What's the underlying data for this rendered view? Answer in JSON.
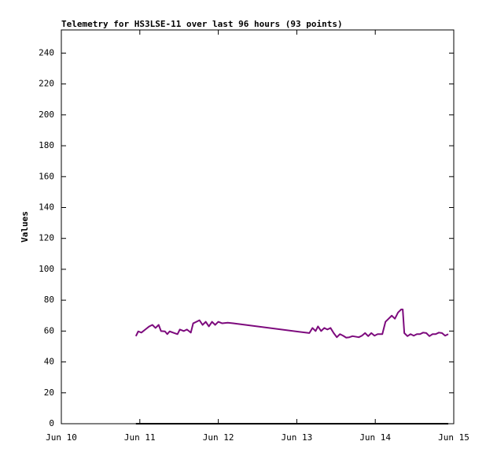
{
  "chart_data": {
    "type": "line",
    "title": "Telemetry for HS3LSE-11 over last 96 hours (93 points)",
    "y_label": "Values",
    "xlim": [
      10,
      15
    ],
    "xticks": [
      {
        "value": 10,
        "label": "Jun 10"
      },
      {
        "value": 11,
        "label": "Jun 11"
      },
      {
        "value": 12,
        "label": "Jun 12"
      },
      {
        "value": 13,
        "label": "Jun 13"
      },
      {
        "value": 14,
        "label": "Jun 14"
      },
      {
        "value": 15,
        "label": "Jun 15"
      }
    ],
    "ylim": [
      0,
      255
    ],
    "yticks": [
      0,
      20,
      40,
      60,
      80,
      100,
      120,
      140,
      160,
      180,
      200,
      220,
      240
    ],
    "grid": false,
    "series": [
      {
        "color": "#7d0a7d",
        "x": [
          10.95,
          10.98,
          11.02,
          11.07,
          11.12,
          11.16,
          11.2,
          11.24,
          11.27,
          11.32,
          11.35,
          11.38,
          11.44,
          11.48,
          11.51,
          11.56,
          11.6,
          11.65,
          11.68,
          11.72,
          11.76,
          11.8,
          11.84,
          11.88,
          11.92,
          11.96,
          12.0,
          12.05,
          12.12,
          12.19,
          13.16,
          13.2,
          13.24,
          13.27,
          13.31,
          13.35,
          13.39,
          13.43,
          13.47,
          13.51,
          13.55,
          13.59,
          13.63,
          13.67,
          13.71,
          13.79,
          13.83,
          13.87,
          13.91,
          13.95,
          13.99,
          14.03,
          14.09,
          14.13,
          14.17,
          14.21,
          14.25,
          14.29,
          14.33,
          14.35,
          14.37,
          14.41,
          14.45,
          14.49,
          14.53,
          14.57,
          14.61,
          14.65,
          14.69,
          14.73,
          14.77,
          14.81,
          14.85,
          14.89,
          14.93
        ],
        "values": [
          56.7,
          59.8,
          59,
          61,
          63,
          64,
          62,
          64,
          60,
          59.8,
          58,
          59.8,
          58.7,
          58,
          61,
          60,
          61,
          59,
          65,
          66,
          67,
          64,
          66,
          63,
          66,
          64,
          66,
          65,
          65.4,
          65,
          58.7,
          62,
          60,
          63,
          60,
          62,
          61,
          62,
          58.7,
          56,
          58,
          57,
          55.7,
          56,
          56.7,
          56,
          57,
          58.7,
          56.7,
          58.7,
          57,
          58,
          58,
          66,
          68,
          70,
          68,
          72,
          74,
          74,
          58.7,
          56.7,
          58,
          57,
          58,
          58,
          59,
          58.7,
          56.7,
          58,
          58,
          59,
          58.7,
          57,
          58
        ]
      },
      {
        "color": "#000000",
        "x": [
          10.95,
          14.93
        ],
        "values": [
          0,
          0
        ]
      }
    ]
  }
}
